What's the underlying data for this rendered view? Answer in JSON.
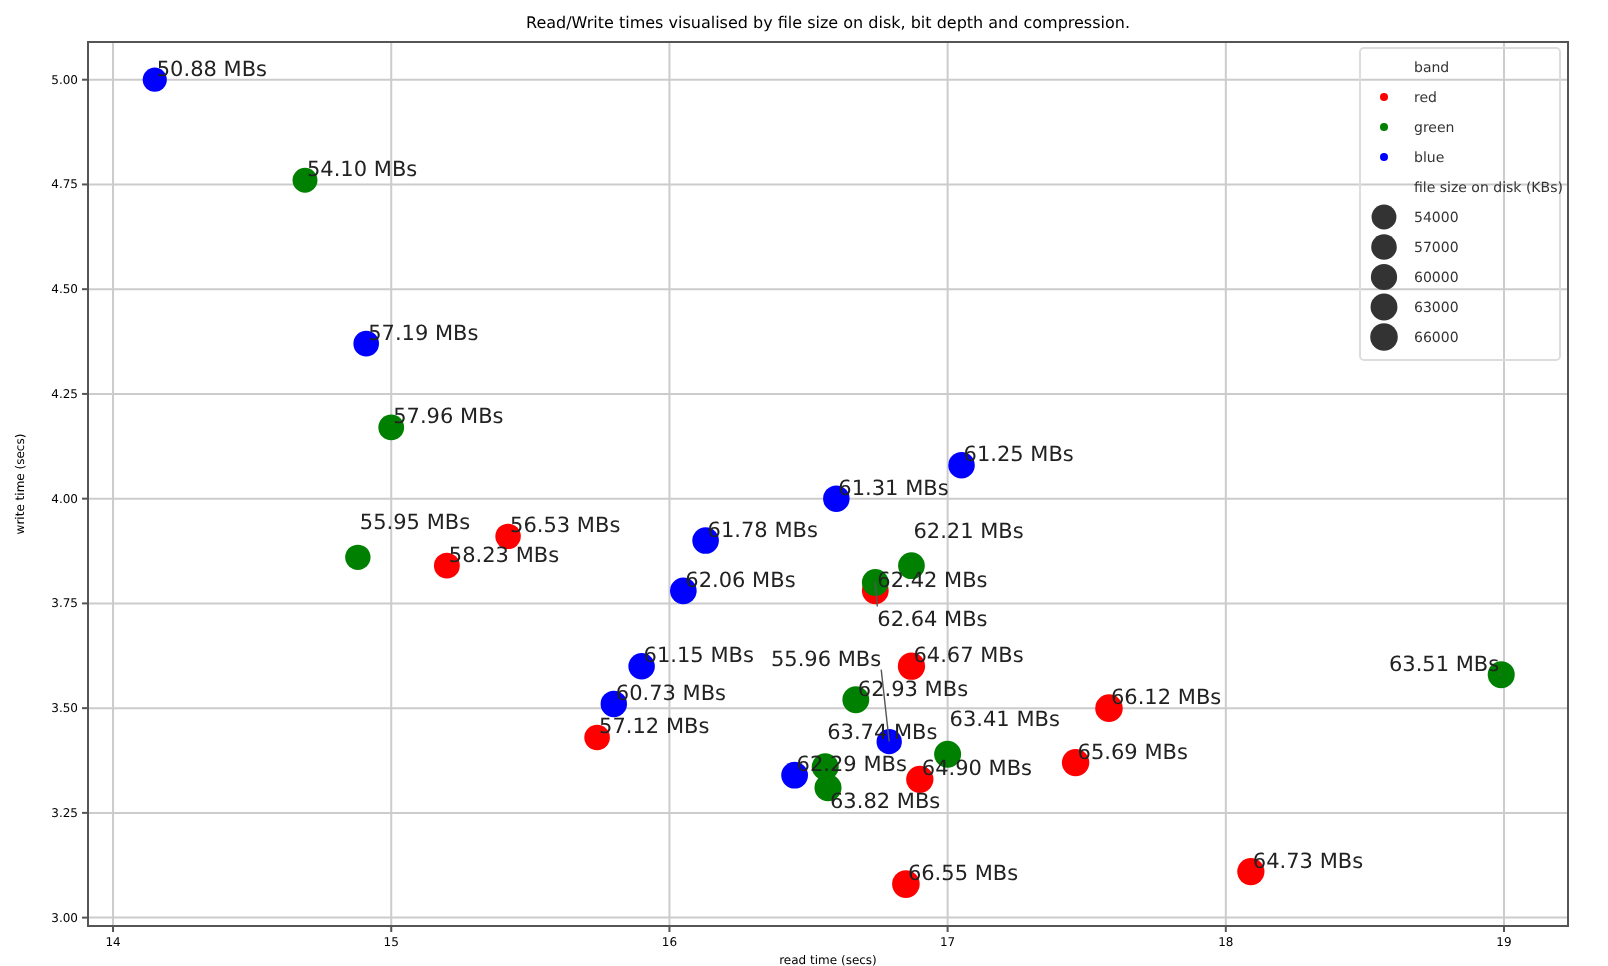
{
  "chart_data": {
    "type": "scatter",
    "title": "Read/Write times visualised by file size on disk, bit depth and compression.",
    "xlabel": "read time (secs)",
    "ylabel": "write time (secs)",
    "legend_title": "band",
    "legend": "top right",
    "grid": true,
    "marker": "circle",
    "xlim": [
      13.91,
      19.23
    ],
    "ylim": [
      2.98,
      5.09
    ],
    "xticks": [
      14,
      15,
      16,
      17,
      18,
      19
    ],
    "yticks": [
      {
        "value": 3,
        "label": "3.00"
      },
      {
        "value": 3.25,
        "label": "3.25"
      },
      {
        "value": 3.5,
        "label": "3.50"
      },
      {
        "value": 3.75,
        "label": "3.75"
      },
      {
        "value": 4,
        "label": "4.00"
      },
      {
        "value": 4.25,
        "label": "4.25"
      },
      {
        "value": 4.5,
        "label": "4.50"
      },
      {
        "value": 4.75,
        "label": "4.75"
      },
      {
        "value": 5,
        "label": "5.00"
      }
    ],
    "size_legend": [
      54000,
      57000,
      60000,
      63000,
      66000
    ],
    "annotations": [
      "file size on disk (KBs)",
      {
        "text": "56.53 MBs",
        "x": 15.42,
        "y": 3.91
      },
      {
        "text": "58.23 MBs",
        "x": 15.2,
        "y": 3.84
      },
      {
        "text": "57.12 MBs",
        "x": 15.74,
        "y": 3.43
      },
      {
        "text": "62.42 MBs",
        "x": 16.74,
        "y": 3.78
      },
      {
        "text": "64.67 MBs",
        "x": 16.87,
        "y": 3.6
      },
      {
        "text": "64.90 MBs",
        "x": 16.9,
        "y": 3.33
      },
      {
        "text": "66.12 MBs",
        "x": 17.58,
        "y": 3.5
      },
      {
        "text": "65.69 MBs",
        "x": 17.46,
        "y": 3.37
      },
      {
        "text": "64.73 MBs",
        "x": 18.09,
        "y": 3.11
      },
      {
        "text": "66.55 MBs",
        "x": 16.85,
        "y": 3.08
      },
      {
        "text": "54.10 MBs",
        "x": 14.69,
        "y": 4.76
      },
      {
        "text": "57.96 MBs",
        "x": 15.0,
        "y": 4.17
      },
      {
        "text": "55.95 MBs",
        "x": 14.88,
        "y": 3.86
      },
      {
        "text": "62.21 MBs",
        "x": 16.87,
        "y": 3.84
      },
      {
        "text": "62.64 MBs",
        "x": 16.74,
        "y": 3.8
      },
      {
        "text": "62.93 MBs",
        "x": 16.67,
        "y": 3.52
      },
      {
        "text": "63.41 MBs",
        "x": 17.0,
        "y": 3.39
      },
      {
        "text": "63.74 MBs",
        "x": 16.56,
        "y": 3.36
      },
      {
        "text": "63.82 MBs",
        "x": 16.57,
        "y": 3.31
      },
      {
        "text": "63.51 MBs",
        "x": 18.99,
        "y": 3.58
      },
      {
        "text": "50.88 MBs",
        "x": 14.15,
        "y": 5.0
      },
      {
        "text": "57.19 MBs",
        "x": 14.91,
        "y": 4.37
      },
      {
        "text": "61.78 MBs",
        "x": 16.13,
        "y": 3.9
      },
      {
        "text": "62.06 MBs",
        "x": 16.05,
        "y": 3.78
      },
      {
        "text": "61.31 MBs",
        "x": 16.6,
        "y": 4.0
      },
      {
        "text": "61.25 MBs",
        "x": 17.05,
        "y": 4.08
      },
      {
        "text": "61.15 MBs",
        "x": 15.9,
        "y": 3.6
      },
      {
        "text": "60.73 MBs",
        "x": 15.8,
        "y": 3.51
      },
      {
        "text": "55.96 MBs",
        "x": 16.79,
        "y": 3.42
      },
      {
        "text": "62.29 MBs",
        "x": 16.45,
        "y": 3.34
      }
    ],
    "series": [
      {
        "name": "red",
        "color": "#ff0000",
        "x": [
          15.42,
          15.2,
          15.74,
          16.74,
          16.87,
          16.9,
          17.58,
          17.46,
          18.09,
          16.85
        ],
        "values": [
          3.91,
          3.84,
          3.43,
          3.78,
          3.6,
          3.33,
          3.5,
          3.37,
          3.11,
          3.08
        ],
        "sizes": [
          56530,
          58230,
          57120,
          62420,
          64670,
          64900,
          66120,
          65690,
          64730,
          66550
        ]
      },
      {
        "name": "green",
        "color": "#008000",
        "x": [
          14.69,
          15.0,
          14.88,
          16.87,
          16.74,
          16.67,
          17.0,
          16.56,
          16.57,
          18.99
        ],
        "values": [
          4.76,
          4.17,
          3.86,
          3.84,
          3.8,
          3.52,
          3.39,
          3.36,
          3.31,
          3.58
        ],
        "sizes": [
          54100,
          57960,
          55950,
          62210,
          62640,
          62930,
          63410,
          63740,
          63820,
          63510
        ]
      },
      {
        "name": "blue",
        "color": "#0000ff",
        "x": [
          14.15,
          14.91,
          16.13,
          16.05,
          16.6,
          17.05,
          15.9,
          15.8,
          16.79,
          16.45
        ],
        "values": [
          5.0,
          4.37,
          3.9,
          3.78,
          4.0,
          4.08,
          3.6,
          3.51,
          3.42,
          3.34
        ],
        "sizes": [
          50880,
          57190,
          61780,
          62060,
          61310,
          61250,
          61150,
          60730,
          55960,
          62290
        ]
      }
    ]
  }
}
